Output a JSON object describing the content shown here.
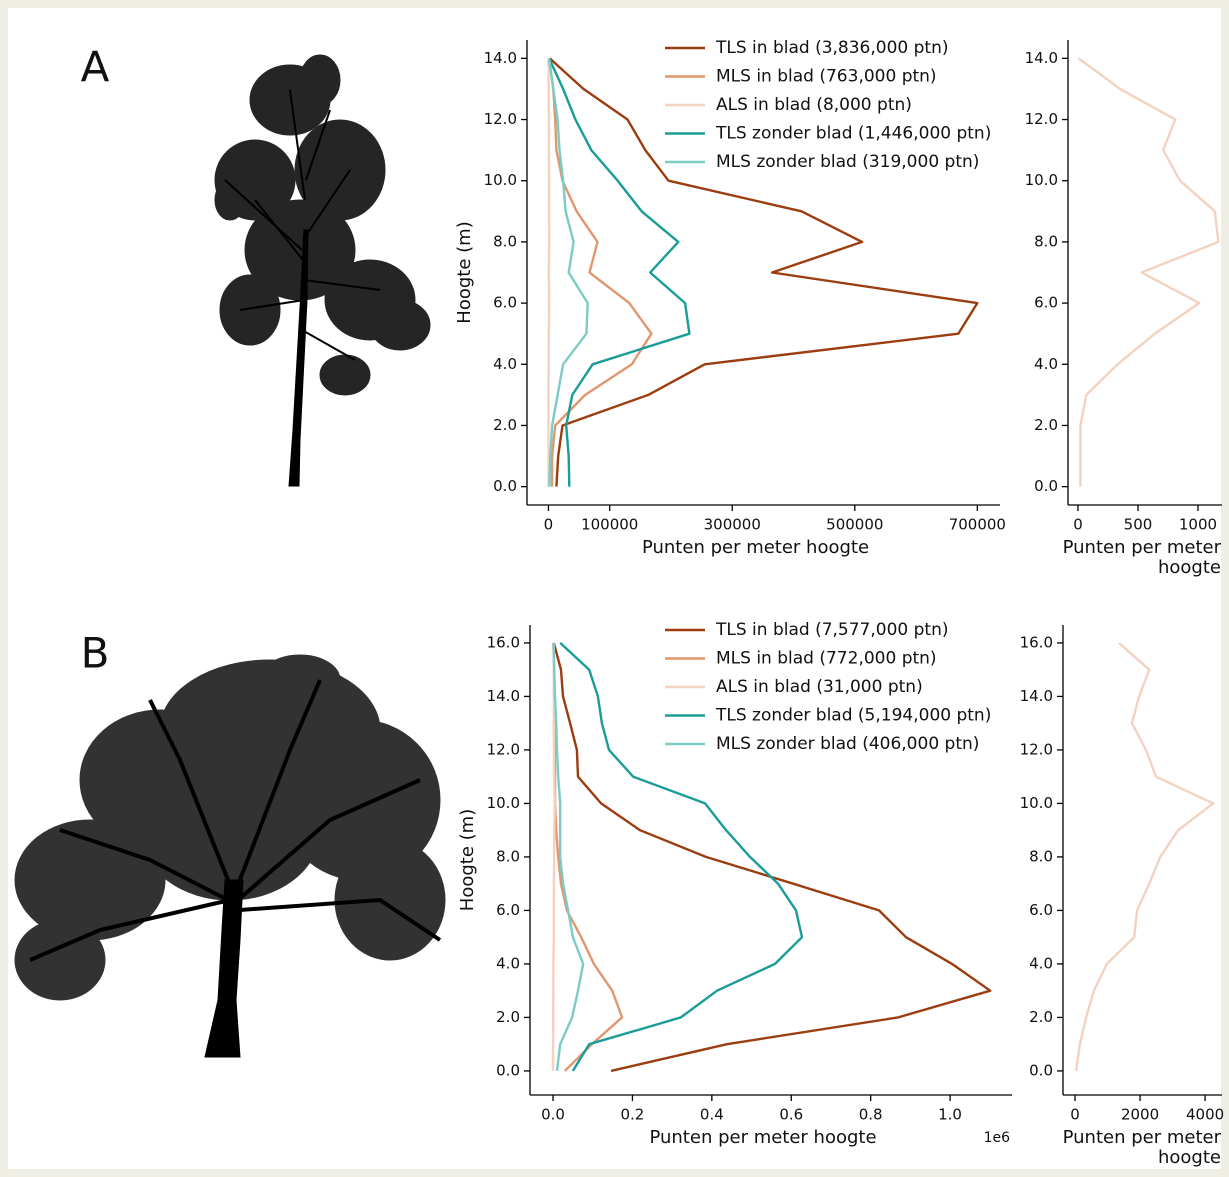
{
  "chart_data": [
    {
      "type": "line",
      "panel_label": "A",
      "ylabel": "Hoogte (m)",
      "xlabel": "Punten per meter hoogte",
      "legend": "upper right",
      "y": [
        0,
        1,
        2,
        3,
        4,
        5,
        6,
        7,
        8,
        9,
        10,
        11,
        12,
        13,
        14
      ],
      "xlim": [
        -35000,
        737000
      ],
      "ylim": [
        -0.6,
        14.6
      ],
      "xticks": [
        0,
        100000,
        300000,
        500000,
        700000
      ],
      "yticks": [
        {
          "value": 0,
          "label": "0.0"
        },
        {
          "value": 2,
          "label": "2.0"
        },
        {
          "value": 4,
          "label": "4.0"
        },
        {
          "value": 6,
          "label": "6.0"
        },
        {
          "value": 8,
          "label": "8.0"
        },
        {
          "value": 10,
          "label": "10.0"
        },
        {
          "value": 12,
          "label": "12.0"
        },
        {
          "value": 14,
          "label": "14.0"
        }
      ],
      "series": [
        {
          "name": "TLS in blad (3,836,000 ptn)",
          "color": "#9c3d10",
          "values": [
            13000,
            16000,
            23000,
            163000,
            255000,
            669000,
            700000,
            365000,
            512000,
            413000,
            196000,
            158000,
            129000,
            57000,
            2000
          ]
        },
        {
          "name": "MLS in blad (763,000 ptn)",
          "color": "#e0976e",
          "values": [
            6000,
            6000,
            11000,
            60000,
            136000,
            168000,
            132000,
            67000,
            80000,
            46000,
            23000,
            13000,
            11000,
            8000,
            1000
          ]
        },
        {
          "name": "ALS in blad (8,000 ptn)",
          "color": "#f3d2c0",
          "values": [
            20,
            20,
            20,
            70,
            330,
            640,
            1010,
            530,
            1170,
            1140,
            850,
            710,
            810,
            350,
            5
          ]
        },
        {
          "name": "TLS zonder blad (1,446,000 ptn)",
          "color": "#1a9c98",
          "values": [
            34000,
            33000,
            29000,
            39000,
            72000,
            230000,
            223000,
            166000,
            212000,
            152000,
            113000,
            70000,
            44000,
            24000,
            1000
          ]
        },
        {
          "name": "MLS zonder blad (319,000 ptn)",
          "color": "#7dcbc5",
          "values": [
            1500,
            3000,
            6000,
            15000,
            24000,
            62000,
            64000,
            33000,
            41000,
            28000,
            24000,
            18000,
            15000,
            8000,
            1000
          ]
        }
      ]
    },
    {
      "type": "line",
      "xlabel": [
        "Punten per meter",
        "hoogte"
      ],
      "y": [
        0,
        1,
        2,
        3,
        4,
        5,
        6,
        7,
        8,
        9,
        10,
        11,
        12,
        13,
        14
      ],
      "xlim": [
        -83,
        1200
      ],
      "ylim": [
        -0.6,
        14.6
      ],
      "xticks": [
        0,
        500,
        1000
      ],
      "yticks": [
        {
          "value": 0,
          "label": "0.0"
        },
        {
          "value": 2,
          "label": "2.0"
        },
        {
          "value": 4,
          "label": "4.0"
        },
        {
          "value": 6,
          "label": "6.0"
        },
        {
          "value": 8,
          "label": "8.0"
        },
        {
          "value": 10,
          "label": "10.0"
        },
        {
          "value": 12,
          "label": "12.0"
        },
        {
          "value": 14,
          "label": "14.0"
        }
      ],
      "color": "#f3d2c0",
      "values": [
        20,
        20,
        20,
        70,
        330,
        640,
        1010,
        530,
        1170,
        1140,
        850,
        710,
        810,
        350,
        5
      ]
    },
    {
      "type": "line",
      "panel_label": "B",
      "ylabel": "Hoogte (m)",
      "xlabel": "Punten per meter hoogte",
      "x_offset_label": "1e6",
      "legend": "upper right",
      "y": [
        0,
        1,
        2,
        3,
        4,
        5,
        6,
        7,
        8,
        9,
        10,
        11,
        12,
        13,
        14,
        15,
        16
      ],
      "xlim": [
        -58000,
        1156000
      ],
      "ylim": [
        -0.9,
        16.67
      ],
      "xticks": [
        {
          "value": 0,
          "label": "0.0"
        },
        {
          "value": 200000,
          "label": "0.2"
        },
        {
          "value": 400000,
          "label": "0.4"
        },
        {
          "value": 600000,
          "label": "0.6"
        },
        {
          "value": 800000,
          "label": "0.8"
        },
        {
          "value": 1000000,
          "label": "1.0"
        }
      ],
      "yticks": [
        {
          "value": 0,
          "label": "0.0"
        },
        {
          "value": 2,
          "label": "2.0"
        },
        {
          "value": 4,
          "label": "4.0"
        },
        {
          "value": 6,
          "label": "6.0"
        },
        {
          "value": 8,
          "label": "8.0"
        },
        {
          "value": 10,
          "label": "10.0"
        },
        {
          "value": 12,
          "label": "12.0"
        },
        {
          "value": 14,
          "label": "14.0"
        },
        {
          "value": 16,
          "label": "16.0"
        }
      ],
      "series": [
        {
          "name": "TLS in blad (7,577,000 ptn)",
          "color": "#9c3d10",
          "values": [
            146000,
            438000,
            869000,
            1101000,
            1005000,
            889000,
            821000,
            605000,
            385000,
            219000,
            121000,
            63000,
            60000,
            43000,
            25000,
            20000,
            2000
          ]
        },
        {
          "name": "MLS in blad (772,000 ptn)",
          "color": "#e0976e",
          "values": [
            30000,
            98000,
            174000,
            149000,
            103000,
            71000,
            35000,
            20000,
            13000,
            8000,
            5000,
            5000,
            5000,
            3000,
            3000,
            3000,
            1000
          ]
        },
        {
          "name": "ALS in blad (31,000 ptn)",
          "color": "#f3d2c0",
          "values": [
            30,
            150,
            340,
            580,
            980,
            1820,
            1910,
            2280,
            2620,
            3170,
            4250,
            2490,
            2180,
            1750,
            1970,
            2280,
            1350
          ]
        },
        {
          "name": "TLS zonder blad (5,194,000 ptn)",
          "color": "#1a9c98",
          "values": [
            50000,
            91000,
            322000,
            413000,
            559000,
            627000,
            612000,
            567000,
            496000,
            436000,
            383000,
            202000,
            141000,
            123000,
            113000,
            91000,
            18000
          ]
        },
        {
          "name": "MLS zonder blad (406,000 ptn)",
          "color": "#7dcbc5",
          "values": [
            10000,
            18000,
            48000,
            63000,
            76000,
            50000,
            38000,
            25000,
            18000,
            18000,
            18000,
            13000,
            10000,
            8000,
            5000,
            3000,
            1000
          ]
        }
      ]
    },
    {
      "type": "line",
      "xlabel": [
        "Punten per meter",
        "hoogte"
      ],
      "y": [
        0,
        1,
        2,
        3,
        4,
        5,
        6,
        7,
        8,
        9,
        10,
        11,
        12,
        13,
        14,
        15,
        16
      ],
      "xlim": [
        -370,
        4520
      ],
      "ylim": [
        -0.9,
        16.67
      ],
      "xticks": [
        0,
        2000,
        4000
      ],
      "yticks": [
        {
          "value": 0,
          "label": "0.0"
        },
        {
          "value": 2,
          "label": "2.0"
        },
        {
          "value": 4,
          "label": "4.0"
        },
        {
          "value": 6,
          "label": "6.0"
        },
        {
          "value": 8,
          "label": "8.0"
        },
        {
          "value": 10,
          "label": "10.0"
        },
        {
          "value": 12,
          "label": "12.0"
        },
        {
          "value": 14,
          "label": "14.0"
        },
        {
          "value": 16,
          "label": "16.0"
        }
      ],
      "color": "#f3d2c0",
      "values": [
        30,
        150,
        340,
        580,
        980,
        1820,
        1910,
        2280,
        2620,
        3170,
        4250,
        2490,
        2180,
        1750,
        1970,
        2280,
        1350
      ]
    }
  ]
}
